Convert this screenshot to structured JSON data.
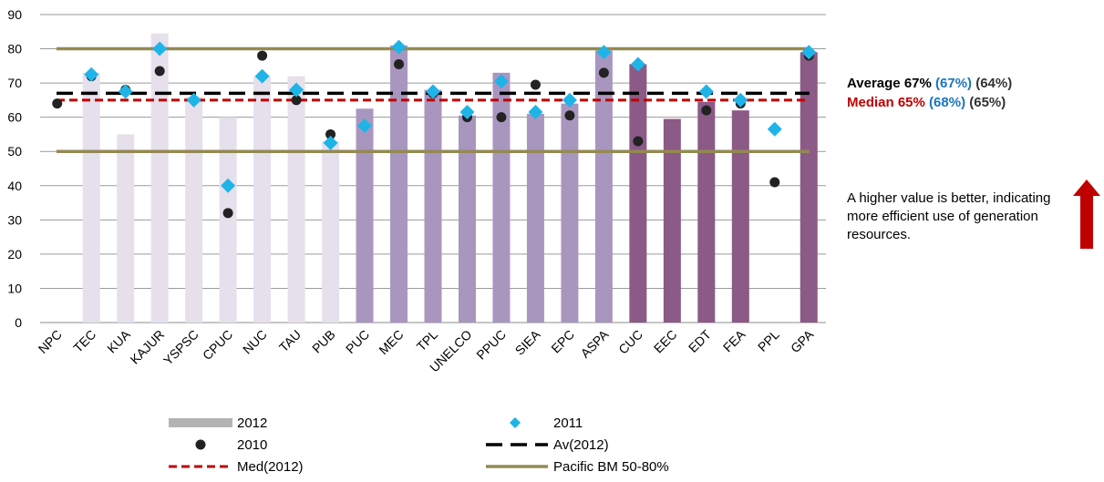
{
  "chart_data": {
    "type": "bar",
    "categories": [
      "NPC",
      "TEC",
      "KUA",
      "KAJUR",
      "YSPSC",
      "CPUC",
      "NUC",
      "TAU",
      "PUB",
      "PUC",
      "MEC",
      "TPL",
      "UNELCO",
      "PPUC",
      "SIEA",
      "EPC",
      "ASPA",
      "CUC",
      "EEC",
      "EDT",
      "FEA",
      "PPL",
      "GPA"
    ],
    "series": [
      {
        "name": "2012",
        "kind": "bar",
        "values": [
          null,
          73,
          55,
          84.5,
          66,
          60,
          72,
          72,
          53,
          62.5,
          81,
          68,
          60.5,
          73,
          61,
          64,
          79.5,
          75.5,
          59.5,
          64.5,
          62,
          null,
          79
        ]
      },
      {
        "name": "2011",
        "kind": "marker",
        "values": [
          null,
          72.5,
          67.5,
          80,
          65,
          40,
          72,
          68,
          52.5,
          57.5,
          80.5,
          67.5,
          61.5,
          70.5,
          61.5,
          65,
          79,
          75.5,
          null,
          67.5,
          65,
          56.5,
          79
        ]
      },
      {
        "name": "2010",
        "kind": "marker",
        "values": [
          64,
          72,
          68,
          73.5,
          65,
          32,
          78,
          65,
          55,
          null,
          75.5,
          67,
          60,
          60,
          69.5,
          60.5,
          73,
          53,
          null,
          62,
          64,
          41,
          78
        ]
      }
    ],
    "bar_colors": [
      "#e6dfec",
      "#e6dfec",
      "#e6dfec",
      "#e6dfec",
      "#e6dfec",
      "#e6dfec",
      "#e6dfec",
      "#e6dfec",
      "#e6dfec",
      "#a996bf",
      "#a996bf",
      "#a996bf",
      "#a996bf",
      "#a996bf",
      "#a996bf",
      "#a996bf",
      "#a996bf",
      "#8b5a86",
      "#8b5a86",
      "#8b5a86",
      "#8b5a86",
      "#8b5a86",
      "#8b5a86"
    ],
    "reference_lines": [
      {
        "name": "Av(2012)",
        "value": 67,
        "color": "#000000",
        "style": "long-dash"
      },
      {
        "name": "Med(2012)",
        "value": 65,
        "color": "#c00000",
        "style": "short-dash"
      },
      {
        "name": "Pacific BM 50-80%",
        "values": [
          50,
          80
        ],
        "color": "#938953",
        "style": "solid"
      }
    ],
    "ylim": [
      0,
      90
    ],
    "yticks": [
      0,
      10,
      20,
      30,
      40,
      50,
      60,
      70,
      80,
      90
    ],
    "grid": true,
    "legend_position": "bottom",
    "colors": {
      "bar_legend": "#b3b3b3",
      "marker_2011": "#1eb4e8",
      "marker_2010": "#222222"
    }
  },
  "side_panel": {
    "average": {
      "label": "Average 67%",
      "v2011": "(67%)",
      "v2010": "(64%)"
    },
    "median": {
      "label": "Median 65%",
      "v2011": "(68%)",
      "v2010": "(65%)"
    },
    "colors": {
      "average": "#000000",
      "median": "#c00000",
      "prev": "#1a75bc",
      "older": "#333333"
    },
    "note": "A higher value is better, indicating more efficient use of generation resources.",
    "arrow_icon": "up-arrow-icon",
    "arrow_color": "#c00000"
  }
}
